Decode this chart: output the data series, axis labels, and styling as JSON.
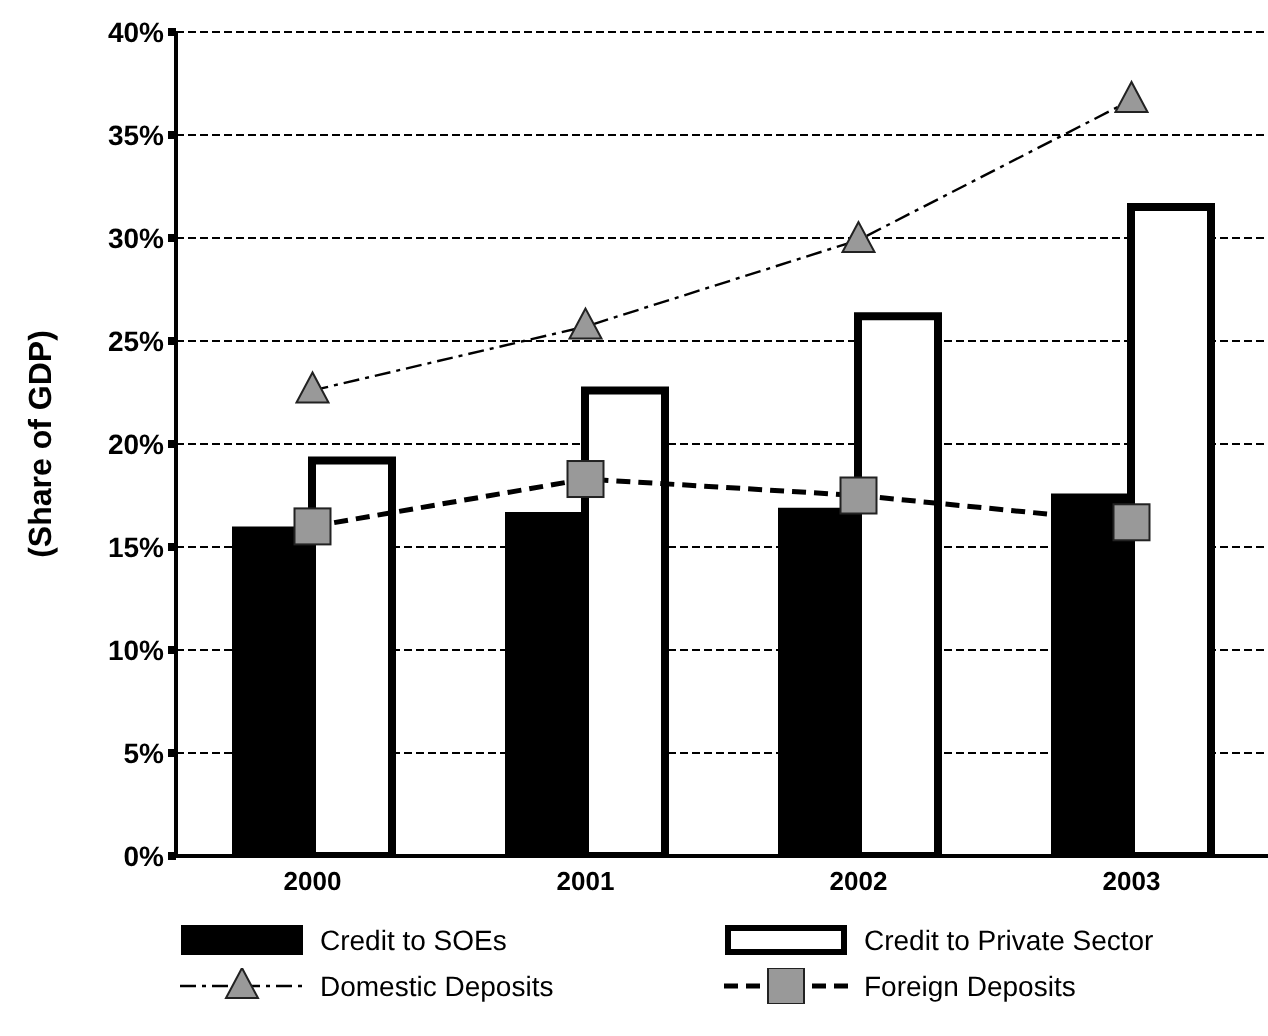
{
  "chart_data": {
    "type": "bar",
    "ylabel": "(Share of GDP)",
    "categories": [
      "2000",
      "2001",
      "2002",
      "2003"
    ],
    "series": [
      {
        "name": "Credit to SOEs",
        "color": "#000000",
        "values": [
          16.0,
          16.7,
          16.9,
          17.6
        ]
      },
      {
        "name": "Credit to Private Sector",
        "color": "#ffffff",
        "values": [
          19.2,
          22.6,
          26.2,
          31.5
        ]
      },
      {
        "name": "Domestic Deposits",
        "type": "line",
        "color": "#999999",
        "marker": "triangle",
        "line_style": "dashdot",
        "values": [
          22.6,
          25.7,
          29.9,
          36.7
        ]
      },
      {
        "name": "Foreign Deposits",
        "type": "line",
        "color": "#999999",
        "marker": "square",
        "line_style": "dashed",
        "values": [
          16.0,
          18.3,
          17.5,
          16.2
        ]
      }
    ],
    "ylim": [
      0,
      40
    ],
    "yticks": [
      {
        "value": 0,
        "label": "0%"
      },
      {
        "value": 5,
        "label": "5%"
      },
      {
        "value": 10,
        "label": "10%"
      },
      {
        "value": 15,
        "label": "15%"
      },
      {
        "value": 20,
        "label": "20%"
      },
      {
        "value": 25,
        "label": "25%"
      },
      {
        "value": 30,
        "label": "30%"
      },
      {
        "value": 35,
        "label": "35%"
      },
      {
        "value": 40,
        "label": "40%"
      }
    ],
    "grid": "y",
    "legend": "bottom"
  }
}
